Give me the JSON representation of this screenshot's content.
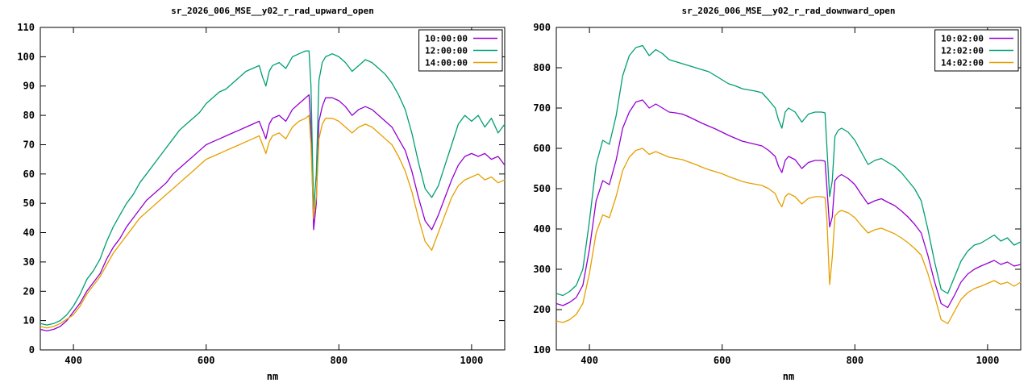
{
  "page": {
    "background": "#ffffff",
    "axis_color": "#000000",
    "text_color": "#000000"
  },
  "chart_data": [
    {
      "type": "line",
      "title": "sr_2026_006_MSE__y02_r_rad_upward_open",
      "xlabel": "nm",
      "ylabel": "",
      "xlim": [
        350,
        1050
      ],
      "ylim": [
        0,
        110
      ],
      "xticks": [
        400,
        600,
        800,
        1000
      ],
      "yticks": [
        0,
        10,
        20,
        30,
        40,
        50,
        60,
        70,
        80,
        90,
        100,
        110
      ],
      "grid": false,
      "legend_position": "top-right",
      "x": [
        350,
        360,
        370,
        380,
        390,
        400,
        410,
        420,
        430,
        440,
        450,
        460,
        470,
        480,
        490,
        500,
        510,
        520,
        530,
        540,
        550,
        560,
        570,
        580,
        590,
        600,
        610,
        620,
        630,
        640,
        650,
        660,
        670,
        680,
        685,
        690,
        695,
        700,
        710,
        720,
        730,
        740,
        750,
        755,
        758,
        762,
        766,
        770,
        775,
        780,
        790,
        800,
        810,
        820,
        830,
        840,
        850,
        860,
        870,
        880,
        890,
        900,
        910,
        920,
        930,
        940,
        950,
        960,
        970,
        980,
        990,
        1000,
        1010,
        1020,
        1030,
        1040,
        1050
      ],
      "series": [
        {
          "name": "10:00:00",
          "color": "#9400D3",
          "values": [
            7,
            6.5,
            7,
            8,
            10,
            13,
            16,
            20,
            23,
            26,
            31,
            35,
            38,
            42,
            45,
            48,
            51,
            53,
            55,
            57,
            60,
            62,
            64,
            66,
            68,
            70,
            71,
            72,
            73,
            74,
            75,
            76,
            77,
            78,
            75,
            72,
            77,
            79,
            80,
            78,
            82,
            84,
            86,
            87,
            76,
            41,
            50,
            78,
            83,
            86,
            86,
            85,
            83,
            80,
            82,
            83,
            82,
            80,
            78,
            76,
            72,
            68,
            61,
            52,
            44,
            41,
            46,
            52,
            58,
            63,
            66,
            67,
            66,
            67,
            65,
            66,
            63
          ]
        },
        {
          "name": "12:00:00",
          "color": "#009E73",
          "values": [
            9,
            8.5,
            9,
            10,
            12,
            15,
            19,
            24,
            27,
            31,
            37,
            42,
            46,
            50,
            53,
            57,
            60,
            63,
            66,
            69,
            72,
            75,
            77,
            79,
            81,
            84,
            86,
            88,
            89,
            91,
            93,
            95,
            96,
            97,
            93,
            90,
            95,
            97,
            98,
            96,
            100,
            101,
            102,
            102,
            90,
            48,
            60,
            92,
            98,
            100,
            101,
            100,
            98,
            95,
            97,
            99,
            98,
            96,
            94,
            91,
            87,
            82,
            74,
            64,
            55,
            52,
            56,
            63,
            70,
            77,
            80,
            78,
            80,
            76,
            79,
            74,
            77
          ]
        },
        {
          "name": "14:00:00",
          "color": "#E69F00",
          "values": [
            8,
            7.5,
            8,
            9,
            10.5,
            12,
            15,
            19,
            22,
            25,
            29,
            33,
            36,
            39,
            42,
            45,
            47,
            49,
            51,
            53,
            55,
            57,
            59,
            61,
            63,
            65,
            66,
            67,
            68,
            69,
            70,
            71,
            72,
            73,
            70,
            67,
            71,
            73,
            74,
            72,
            76,
            78,
            79,
            80,
            70,
            45,
            52,
            72,
            77,
            79,
            79,
            78,
            76,
            74,
            76,
            77,
            76,
            74,
            72,
            70,
            66,
            61,
            54,
            45,
            37,
            34,
            40,
            46,
            52,
            56,
            58,
            59,
            60,
            58,
            59,
            57,
            58
          ]
        }
      ]
    },
    {
      "type": "line",
      "title": "sr_2026_006_MSE__y02_r_rad_downward_open",
      "xlabel": "nm",
      "ylabel": "",
      "xlim": [
        350,
        1050
      ],
      "ylim": [
        100,
        900
      ],
      "xticks": [
        400,
        600,
        800,
        1000
      ],
      "yticks": [
        100,
        200,
        300,
        400,
        500,
        600,
        700,
        800,
        900
      ],
      "grid": false,
      "legend_position": "top-right",
      "x": [
        350,
        360,
        370,
        380,
        390,
        400,
        410,
        420,
        430,
        440,
        450,
        460,
        470,
        480,
        490,
        500,
        510,
        520,
        530,
        540,
        550,
        560,
        570,
        580,
        590,
        600,
        610,
        620,
        630,
        640,
        650,
        660,
        670,
        680,
        685,
        690,
        695,
        700,
        710,
        720,
        730,
        740,
        750,
        755,
        758,
        762,
        766,
        770,
        775,
        780,
        790,
        800,
        810,
        820,
        830,
        840,
        850,
        860,
        870,
        880,
        890,
        900,
        910,
        920,
        930,
        940,
        950,
        960,
        970,
        980,
        990,
        1000,
        1010,
        1020,
        1030,
        1040,
        1050
      ],
      "series": [
        {
          "name": "10:02:00",
          "color": "#9400D3",
          "values": [
            215,
            210,
            218,
            230,
            260,
            350,
            470,
            520,
            510,
            570,
            650,
            690,
            715,
            720,
            700,
            710,
            700,
            690,
            688,
            685,
            678,
            670,
            662,
            655,
            648,
            640,
            632,
            625,
            618,
            614,
            610,
            606,
            595,
            580,
            555,
            540,
            570,
            580,
            572,
            550,
            565,
            570,
            570,
            568,
            500,
            405,
            430,
            520,
            530,
            535,
            525,
            510,
            485,
            462,
            470,
            475,
            466,
            458,
            445,
            430,
            412,
            390,
            335,
            270,
            215,
            205,
            235,
            268,
            288,
            300,
            308,
            315,
            322,
            312,
            318,
            308,
            312
          ]
        },
        {
          "name": "12:02:00",
          "color": "#009E73",
          "values": [
            240,
            235,
            245,
            260,
            300,
            420,
            560,
            620,
            610,
            680,
            780,
            830,
            850,
            855,
            830,
            845,
            835,
            820,
            815,
            810,
            805,
            800,
            795,
            790,
            780,
            770,
            760,
            755,
            748,
            745,
            742,
            738,
            720,
            700,
            670,
            650,
            690,
            700,
            690,
            665,
            685,
            690,
            690,
            688,
            600,
            480,
            520,
            630,
            645,
            650,
            640,
            620,
            590,
            560,
            570,
            575,
            565,
            555,
            540,
            520,
            500,
            470,
            400,
            320,
            250,
            240,
            280,
            320,
            345,
            360,
            365,
            375,
            385,
            370,
            378,
            360,
            368
          ]
        },
        {
          "name": "14:02:00",
          "color": "#E69F00",
          "values": [
            172,
            168,
            175,
            188,
            215,
            290,
            390,
            435,
            428,
            480,
            545,
            578,
            595,
            600,
            585,
            592,
            585,
            578,
            575,
            572,
            566,
            560,
            553,
            547,
            542,
            537,
            530,
            524,
            518,
            514,
            511,
            508,
            500,
            488,
            468,
            455,
            480,
            488,
            480,
            462,
            476,
            480,
            480,
            478,
            420,
            262,
            330,
            432,
            442,
            446,
            440,
            428,
            408,
            390,
            398,
            402,
            395,
            388,
            378,
            366,
            352,
            335,
            290,
            235,
            175,
            165,
            195,
            225,
            242,
            252,
            258,
            265,
            272,
            263,
            268,
            258,
            268
          ]
        }
      ]
    }
  ]
}
